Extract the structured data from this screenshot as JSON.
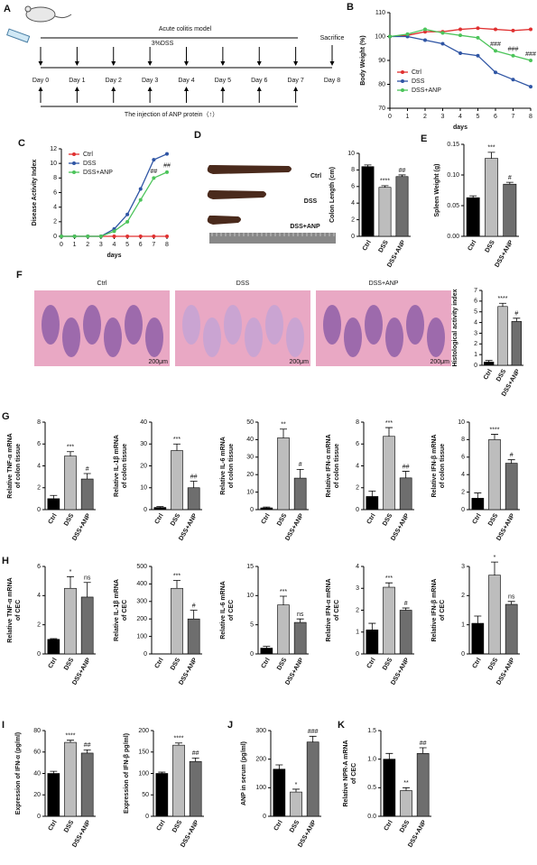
{
  "diagram": {
    "panel": "A",
    "title": "Acute colitis model",
    "treatment": "3%DSS",
    "endpoint": "Sacrifice",
    "days": [
      "Day 0",
      "Day 1",
      "Day 2",
      "Day 3",
      "Day 4",
      "Day 5",
      "Day 6",
      "Day 7",
      "Day 8"
    ],
    "injection": "The injection of ANP protein（↑）"
  },
  "colon_images": {
    "panel": "D",
    "labels": [
      "Ctrl",
      "DSS",
      "DSS+ANP"
    ]
  },
  "histology": {
    "panel": "F",
    "labels": [
      "Ctrl",
      "DSS",
      "DSS+ANP"
    ],
    "scale_bar": "200μm"
  },
  "chart_data": [
    {
      "type": "line",
      "panel": "B",
      "ylabel": [
        "Body Weight (%)"
      ],
      "xlabel": "days",
      "x": [
        0,
        1,
        2,
        3,
        4,
        5,
        6,
        7,
        8
      ],
      "xlim": [
        0,
        8
      ],
      "xticks": [
        0,
        1,
        2,
        3,
        4,
        5,
        6,
        7,
        8
      ],
      "ylim": [
        70,
        110
      ],
      "yticks": [
        70,
        80,
        90,
        100,
        110
      ],
      "legend": "lower-left",
      "series": [
        {
          "name": "Ctrl",
          "color": "#e03030",
          "values": [
            100,
            100.5,
            102,
            102,
            103,
            103.5,
            103,
            102.5,
            103
          ]
        },
        {
          "name": "DSS",
          "color": "#2f55a4",
          "values": [
            100,
            100,
            98.5,
            97,
            93,
            92,
            85,
            82,
            79
          ]
        },
        {
          "name": "DSS+ANP",
          "color": "#4cc45a",
          "values": [
            100,
            101,
            103,
            101.5,
            100.5,
            99.5,
            94,
            92,
            90
          ],
          "annotations": [
            null,
            null,
            null,
            null,
            null,
            null,
            "###",
            "###",
            "###"
          ]
        }
      ]
    },
    {
      "type": "line",
      "panel": "C",
      "ylabel": [
        "Disease Activity Index"
      ],
      "xlabel": "days",
      "x": [
        0,
        1,
        2,
        3,
        4,
        5,
        6,
        7,
        8
      ],
      "xlim": [
        0,
        8
      ],
      "xticks": [
        0,
        1,
        2,
        3,
        4,
        5,
        6,
        7,
        8
      ],
      "ylim": [
        0,
        12
      ],
      "yticks": [
        0,
        2,
        4,
        6,
        8,
        10,
        12
      ],
      "legend": "upper-left",
      "series": [
        {
          "name": "Ctrl",
          "color": "#e03030",
          "values": [
            0,
            0,
            0,
            0,
            0,
            0,
            0,
            0,
            0
          ]
        },
        {
          "name": "DSS",
          "color": "#2f55a4",
          "values": [
            0,
            0,
            0,
            0,
            1,
            3,
            6.5,
            10.5,
            11.3
          ]
        },
        {
          "name": "DSS+ANP",
          "color": "#4cc45a",
          "values": [
            0,
            0,
            0,
            0,
            0.7,
            2,
            5,
            8,
            8.8
          ],
          "annotations": [
            null,
            null,
            null,
            null,
            null,
            null,
            null,
            "##",
            "##"
          ]
        }
      ]
    },
    {
      "type": "bar",
      "ylabel": [
        "Colon Length (cm)"
      ],
      "categories": [
        "Ctrl",
        "DSS",
        "DSS+ANP"
      ],
      "values": [
        8.4,
        5.9,
        7.2
      ],
      "errors": [
        0.2,
        0.2,
        0.2
      ],
      "colors": [
        "#000000",
        "#bdbdbd",
        "#6e6e6e"
      ],
      "ylim": [
        0,
        10
      ],
      "yticks": [
        0,
        2,
        4,
        6,
        8,
        10
      ],
      "annotations": [
        null,
        "****",
        "##"
      ]
    },
    {
      "type": "bar",
      "panel": "E",
      "ylabel": [
        "Spleen Weight (g)"
      ],
      "categories": [
        "Ctrl",
        "DSS",
        "DSS+ANP"
      ],
      "values": [
        0.063,
        0.127,
        0.085
      ],
      "errors": [
        0.003,
        0.01,
        0.003
      ],
      "colors": [
        "#000000",
        "#bdbdbd",
        "#6e6e6e"
      ],
      "ylim": [
        0,
        0.15
      ],
      "yticks": [
        {
          "value": 0,
          "label": "0.00"
        },
        0.05,
        {
          "value": 0.1,
          "label": "0.10"
        },
        0.15
      ],
      "annotations": [
        null,
        "***",
        "#"
      ]
    },
    {
      "type": "bar",
      "ylabel": [
        "Histological activity index"
      ],
      "categories": [
        "Ctrl",
        "DSS",
        "DSS+ANP"
      ],
      "values": [
        0.3,
        5.5,
        4.1
      ],
      "errors": [
        0.15,
        0.3,
        0.3
      ],
      "colors": [
        "#000000",
        "#bdbdbd",
        "#6e6e6e"
      ],
      "ylim": [
        0,
        7
      ],
      "yticks": [
        0,
        1,
        2,
        3,
        4,
        5,
        6,
        7
      ],
      "annotations": [
        null,
        "****",
        "#"
      ]
    },
    {
      "type": "bar",
      "panel": "G",
      "ylabel": [
        "Relative TNF-α mRNA",
        "of colon tissue"
      ],
      "categories": [
        "Ctrl",
        "DSS",
        "DSS+ANP"
      ],
      "values": [
        1,
        4.9,
        2.8
      ],
      "errors": [
        0.3,
        0.4,
        0.5
      ],
      "colors": [
        "#000000",
        "#bdbdbd",
        "#6e6e6e"
      ],
      "ylim": [
        0,
        8
      ],
      "yticks": [
        0,
        2,
        4,
        6,
        8
      ],
      "annotations": [
        null,
        "***",
        "#"
      ]
    },
    {
      "type": "bar",
      "ylabel": [
        "Relative IL-1β mRNA",
        "of colon tissue"
      ],
      "categories": [
        "Ctrl",
        "DSS",
        "DSS+ANP"
      ],
      "values": [
        1,
        27,
        10
      ],
      "errors": [
        0.4,
        3,
        3
      ],
      "colors": [
        "#000000",
        "#bdbdbd",
        "#6e6e6e"
      ],
      "ylim": [
        0,
        40
      ],
      "yticks": [
        0,
        10,
        20,
        30,
        40
      ],
      "annotations": [
        null,
        "***",
        "##"
      ]
    },
    {
      "type": "bar",
      "ylabel": [
        "Relative IL-6 mRNA",
        "of colon tissue"
      ],
      "categories": [
        "Ctrl",
        "DSS",
        "DSS+ANP"
      ],
      "values": [
        1,
        41,
        18
      ],
      "errors": [
        0.5,
        5,
        5
      ],
      "colors": [
        "#000000",
        "#bdbdbd",
        "#6e6e6e"
      ],
      "ylim": [
        0,
        50
      ],
      "yticks": [
        0,
        10,
        20,
        30,
        40,
        50
      ],
      "annotations": [
        null,
        "**",
        "#"
      ]
    },
    {
      "type": "bar",
      "ylabel": [
        "Relative IFN-α mRNA",
        "of colon tissue"
      ],
      "categories": [
        "Ctrl",
        "DSS",
        "DSS+ANP"
      ],
      "values": [
        1.2,
        6.7,
        2.9
      ],
      "errors": [
        0.5,
        0.8,
        0.6
      ],
      "colors": [
        "#000000",
        "#bdbdbd",
        "#6e6e6e"
      ],
      "ylim": [
        0,
        8
      ],
      "yticks": [
        0,
        2,
        4,
        6,
        8
      ],
      "annotations": [
        null,
        "***",
        "##"
      ]
    },
    {
      "type": "bar",
      "ylabel": [
        "Relative IFN-β mRNA",
        "of colon tissue"
      ],
      "categories": [
        "Ctrl",
        "DSS",
        "DSS+ANP"
      ],
      "values": [
        1.3,
        8,
        5.3
      ],
      "errors": [
        0.6,
        0.6,
        0.4
      ],
      "colors": [
        "#000000",
        "#bdbdbd",
        "#6e6e6e"
      ],
      "ylim": [
        0,
        10
      ],
      "yticks": [
        0,
        2,
        4,
        6,
        8,
        10
      ],
      "annotations": [
        null,
        "****",
        "#"
      ]
    },
    {
      "type": "bar",
      "panel": "H",
      "ylabel": [
        "Relative TNF-α mRNA",
        "of CEC"
      ],
      "categories": [
        "Ctrl",
        "DSS",
        "DSS+ANP"
      ],
      "values": [
        1,
        4.5,
        3.9
      ],
      "errors": [
        0.05,
        0.8,
        1
      ],
      "colors": [
        "#000000",
        "#bdbdbd",
        "#6e6e6e"
      ],
      "ylim": [
        0,
        6
      ],
      "yticks": [
        0,
        2,
        4,
        6
      ],
      "annotations": [
        null,
        "*",
        "ns"
      ]
    },
    {
      "type": "bar",
      "ylabel": [
        "Relative IL-1β mRNA",
        "of CEC"
      ],
      "categories": [
        "Ctrl",
        "DSS",
        "DSS+ANP"
      ],
      "values": [
        0,
        375,
        200
      ],
      "errors": [
        0,
        45,
        50
      ],
      "colors": [
        "#000000",
        "#bdbdbd",
        "#6e6e6e"
      ],
      "ylim": [
        0,
        500
      ],
      "yticks": [
        0,
        100,
        200,
        300,
        400,
        500
      ],
      "annotations": [
        null,
        "***",
        "#"
      ]
    },
    {
      "type": "bar",
      "ylabel": [
        "Relative IL-6 mRNA",
        "of CEC"
      ],
      "categories": [
        "Ctrl",
        "DSS",
        "DSS+ANP"
      ],
      "values": [
        1,
        8.4,
        5.4
      ],
      "errors": [
        0.3,
        1.5,
        0.6
      ],
      "colors": [
        "#000000",
        "#bdbdbd",
        "#6e6e6e"
      ],
      "ylim": [
        0,
        15
      ],
      "yticks": [
        0,
        5,
        10,
        15
      ],
      "annotations": [
        null,
        "***",
        "ns"
      ]
    },
    {
      "type": "bar",
      "ylabel": [
        "Relative IFN-α mRNA",
        "of CEC"
      ],
      "categories": [
        "Ctrl",
        "DSS",
        "DSS+ANP"
      ],
      "values": [
        1.1,
        3.05,
        2
      ],
      "errors": [
        0.3,
        0.2,
        0.1
      ],
      "colors": [
        "#000000",
        "#bdbdbd",
        "#6e6e6e"
      ],
      "ylim": [
        0,
        4
      ],
      "yticks": [
        0,
        1,
        2,
        3,
        4
      ],
      "annotations": [
        null,
        "***",
        "#"
      ]
    },
    {
      "type": "bar",
      "ylabel": [
        "Relative IFN-β mRNA",
        "of CEC"
      ],
      "categories": [
        "Ctrl",
        "DSS",
        "DSS+ANP"
      ],
      "values": [
        1.05,
        2.7,
        1.7
      ],
      "errors": [
        0.25,
        0.45,
        0.1
      ],
      "colors": [
        "#000000",
        "#bdbdbd",
        "#6e6e6e"
      ],
      "ylim": [
        0,
        3
      ],
      "yticks": [
        0,
        1,
        2,
        3
      ],
      "annotations": [
        null,
        "*",
        "ns"
      ]
    },
    {
      "type": "bar",
      "panel": "I",
      "ylabel": [
        "Expression of IFN-α (pg/ml)"
      ],
      "categories": [
        "Ctrl",
        "DSS",
        "DSS+ANP"
      ],
      "values": [
        40,
        69,
        59
      ],
      "errors": [
        2,
        2,
        3
      ],
      "colors": [
        "#000000",
        "#bdbdbd",
        "#6e6e6e"
      ],
      "ylim": [
        0,
        80
      ],
      "yticks": [
        0,
        20,
        40,
        60,
        80
      ],
      "annotations": [
        null,
        "****",
        "##"
      ]
    },
    {
      "type": "bar",
      "ylabel": [
        "Expression of IFN-β pg/ml)"
      ],
      "categories": [
        "Ctrl",
        "DSS",
        "DSS+ANP"
      ],
      "values": [
        100,
        166,
        128
      ],
      "errors": [
        3,
        5,
        8
      ],
      "colors": [
        "#000000",
        "#bdbdbd",
        "#6e6e6e"
      ],
      "ylim": [
        0,
        200
      ],
      "yticks": [
        0,
        50,
        100,
        150,
        200
      ],
      "annotations": [
        null,
        "****",
        "##"
      ]
    },
    {
      "type": "bar",
      "panel": "J",
      "ylabel": [
        "ANP in serum (pg/ml)"
      ],
      "categories": [
        "Ctrl",
        "DSS",
        "DSS+ANP"
      ],
      "values": [
        165,
        85,
        260
      ],
      "errors": [
        15,
        10,
        20
      ],
      "colors": [
        "#000000",
        "#bdbdbd",
        "#6e6e6e"
      ],
      "ylim": [
        0,
        300
      ],
      "yticks": [
        0,
        100,
        200,
        300
      ],
      "annotations": [
        null,
        "*",
        "###"
      ]
    },
    {
      "type": "bar",
      "panel": "K",
      "ylabel": [
        "Relative NPR-A mRNA",
        "of CEC"
      ],
      "categories": [
        "Ctrl",
        "DSS",
        "DSS+ANP"
      ],
      "values": [
        1,
        0.45,
        1.1
      ],
      "errors": [
        0.1,
        0.05,
        0.1
      ],
      "colors": [
        "#000000",
        "#bdbdbd",
        "#6e6e6e"
      ],
      "ylim": [
        0,
        1.5
      ],
      "yticks": [
        {
          "value": 0,
          "label": "0.0"
        },
        0.5,
        {
          "value": 1,
          "label": "1.0"
        },
        1.5
      ],
      "annotations": [
        null,
        "**",
        "##"
      ]
    }
  ]
}
